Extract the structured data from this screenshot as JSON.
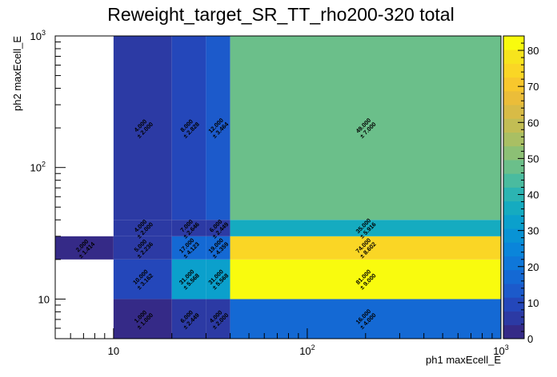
{
  "chart_data": {
    "type": "heatmap",
    "title": "Reweight_target_SR_TT_rho200-320 total",
    "xlabel": "ph1 maxEcell_E",
    "ylabel": "ph2 maxEcell_E",
    "xscale": "log",
    "yscale": "log",
    "xlim": [
      5,
      1000
    ],
    "ylim": [
      5,
      1000
    ],
    "x_edges": [
      5,
      10,
      20,
      30,
      40,
      1000
    ],
    "y_edges": [
      5,
      10,
      20,
      30,
      40,
      1000
    ],
    "x_tick_labels": [
      {
        "value": 10,
        "label": "10"
      },
      {
        "value": 100,
        "label": "10",
        "exp": "2"
      },
      {
        "value": 1000,
        "label": "10",
        "exp": "3"
      }
    ],
    "y_tick_labels": [
      {
        "value": 10,
        "label": "10"
      },
      {
        "value": 100,
        "label": "10",
        "exp": "2"
      },
      {
        "value": 1000,
        "label": "10",
        "exp": "3"
      }
    ],
    "z_range": [
      0,
      84
    ],
    "z_ticks": [
      "0",
      "10",
      "20",
      "30",
      "40",
      "50",
      "60",
      "70",
      "80"
    ],
    "cells": [
      {
        "ix": 1,
        "iy": 0,
        "value": 1,
        "label": "1.000",
        "error": "± 1.000"
      },
      {
        "ix": 2,
        "iy": 0,
        "value": 6,
        "label": "6.000",
        "error": "± 2.449"
      },
      {
        "ix": 3,
        "iy": 0,
        "value": 4,
        "label": "4.000",
        "error": "± 2.000"
      },
      {
        "ix": 4,
        "iy": 0,
        "value": 16,
        "label": "16.000",
        "error": "± 4.000"
      },
      {
        "ix": 1,
        "iy": 1,
        "value": 10,
        "label": "10.000",
        "error": "± 3.162"
      },
      {
        "ix": 2,
        "iy": 1,
        "value": 31,
        "label": "31.000",
        "error": "± 5.568"
      },
      {
        "ix": 3,
        "iy": 1,
        "value": 31,
        "label": "31.000",
        "error": "± 5.568"
      },
      {
        "ix": 4,
        "iy": 1,
        "value": 81,
        "label": "81.000",
        "error": "± 9.000"
      },
      {
        "ix": 0,
        "iy": 2,
        "value": 2,
        "label": "2.000",
        "error": "± 1.414"
      },
      {
        "ix": 1,
        "iy": 2,
        "value": 5,
        "label": "5.000",
        "error": "± 2.236"
      },
      {
        "ix": 2,
        "iy": 2,
        "value": 17,
        "label": "17.000",
        "error": "± 4.123"
      },
      {
        "ix": 3,
        "iy": 2,
        "value": 19,
        "label": "19.000",
        "error": "± 4.359"
      },
      {
        "ix": 4,
        "iy": 2,
        "value": 74,
        "label": "74.000",
        "error": "± 8.602"
      },
      {
        "ix": 1,
        "iy": 3,
        "value": 4,
        "label": "4.000",
        "error": "± 2.000"
      },
      {
        "ix": 2,
        "iy": 3,
        "value": 7,
        "label": "7.000",
        "error": "± 2.646"
      },
      {
        "ix": 3,
        "iy": 3,
        "value": 6,
        "label": "6.000",
        "error": "± 2.449"
      },
      {
        "ix": 4,
        "iy": 3,
        "value": 35,
        "label": "35.000",
        "error": "± 5.916"
      },
      {
        "ix": 1,
        "iy": 4,
        "value": 4,
        "label": "4.000",
        "error": "± 2.000"
      },
      {
        "ix": 2,
        "iy": 4,
        "value": 8,
        "label": "8.000",
        "error": "± 2.828"
      },
      {
        "ix": 3,
        "iy": 4,
        "value": 12,
        "label": "12.000",
        "error": "± 3.464"
      },
      {
        "ix": 4,
        "iy": 4,
        "value": 49,
        "label": "49.000",
        "error": "± 7.000"
      }
    ],
    "palette": [
      "#352a87",
      "#2c3aa4",
      "#2447ba",
      "#1c5acb",
      "#1469d4",
      "#0f77d9",
      "#0a85da",
      "#0993d5",
      "#0ba0cc",
      "#15abc0",
      "#2cb4b2",
      "#4abb9f",
      "#6bbf8a",
      "#8cc075",
      "#a9bf63",
      "#c2bd54",
      "#d8bb46",
      "#ebbd39",
      "#f8c72d",
      "#fad625",
      "#f7e41d",
      "#f9fb0e"
    ],
    "grid": false,
    "colorbar": "right"
  }
}
